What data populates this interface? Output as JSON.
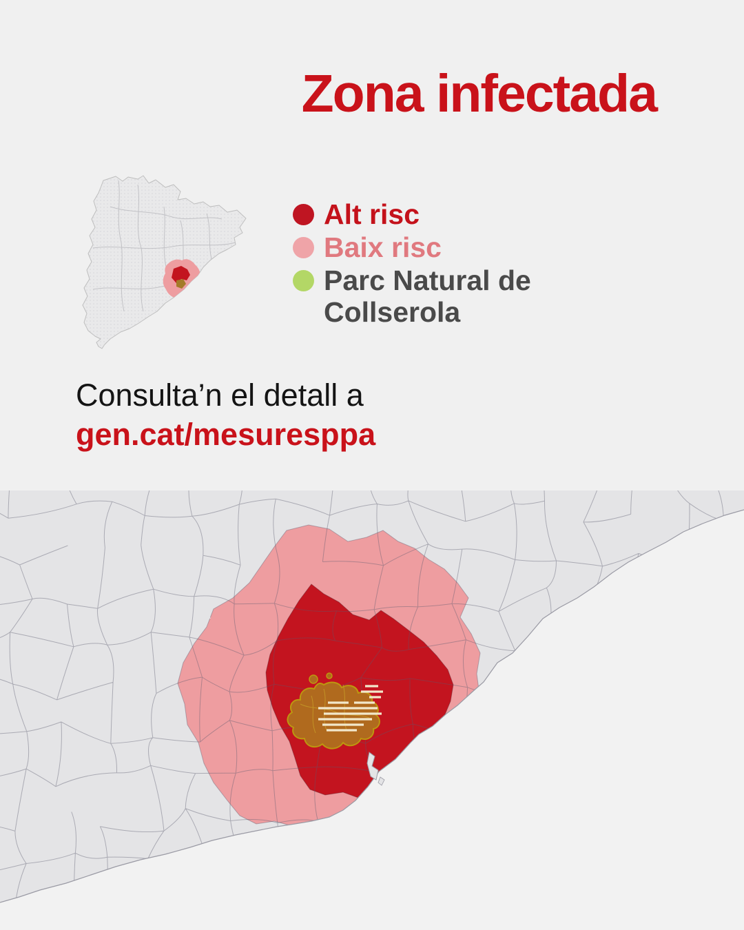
{
  "title": "Zona infectada",
  "colors": {
    "accent_red": "#c9121a",
    "text_dark": "#141414",
    "text_gray": "#4a4a4a"
  },
  "legend": {
    "items": [
      {
        "id": "alt-risc",
        "label": "Alt risc",
        "dot_color": "#bf1522",
        "text_color": "#c4121b"
      },
      {
        "id": "baix-risc",
        "label": "Baix risc",
        "dot_color": "#efa4a8",
        "text_color": "#e0797f"
      },
      {
        "id": "collserola",
        "label": "Parc Natural de Collserola",
        "dot_color": "#b3d766",
        "text_color": "#4a4a4a"
      }
    ]
  },
  "footer": {
    "line1": "Consulta’n el detall a",
    "link": "gen.cat/mesuresppa"
  },
  "map": {
    "colors": {
      "land": "#e4e4e6",
      "sea": "#f2f2f2",
      "border": "#5a5a6e",
      "coast": "#9a9aa4",
      "baix_risc": "#ee9da0",
      "alt_risc": "#c3141f",
      "parc_fill": "#b06a1e",
      "parc_outline": "#bd980f",
      "parc_hatch": "#f2e8cb",
      "minimap_land": "#e9e9ea",
      "minimap_border": "#bdbdbd"
    }
  }
}
